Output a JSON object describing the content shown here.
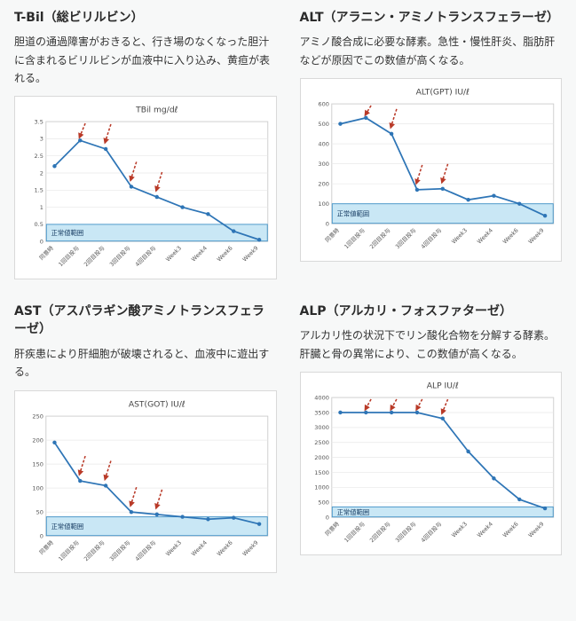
{
  "colors": {
    "line": "#2e75b6",
    "band_fill": "#c9e7f5",
    "band_border": "#4a97c9",
    "arrow": "#b93a28",
    "grid": "#e8e8e8",
    "plot_border": "#cfcfcf",
    "text": "#444444"
  },
  "panels": [
    {
      "heading": "T-Bil（総ビリルビン）",
      "description": "胆道の通過障害がおきると、行き場のなくなった胆汁に含まれるビリルビンが血液中に入り込み、黄疸が表れる。"
    },
    {
      "heading": "ALT（アラニン・アミノトランスフェラーゼ）",
      "description": "アミノ酸合成に必要な酵素。急性・慢性肝炎、脂肪肝などが原因でこの数値が高くなる。"
    },
    {
      "heading": "AST（アスパラギン酸アミノトランスフェラーゼ）",
      "description": "肝疾患により肝細胞が破壊されると、血液中に遊出する。"
    },
    {
      "heading": "ALP（アルカリ・フォスファターゼ）",
      "description": "アルカリ性の状況下でリン酸化合物を分解する酵素。肝臓と骨の異常により、この数値が高くなる。"
    }
  ],
  "chart_data": [
    {
      "type": "line",
      "title": "TBil mg/dℓ",
      "categories": [
        "同意時",
        "1回目投与",
        "2回目投与",
        "3回目投与",
        "4回目投与",
        "Week3",
        "Week4",
        "Week6",
        "Week9"
      ],
      "values": [
        2.2,
        2.95,
        2.7,
        1.6,
        1.3,
        1.0,
        0.8,
        0.3,
        0.05
      ],
      "ylim": [
        0,
        3.5
      ],
      "ystep": 0.5,
      "grid": true,
      "legend": "none",
      "normal_range": {
        "label": "正常値範囲",
        "max": 0.5
      },
      "injection_indices": [
        1,
        2,
        3,
        4
      ]
    },
    {
      "type": "line",
      "title": "ALT(GPT) IU/ℓ",
      "categories": [
        "同意時",
        "1回目投与",
        "2回目投与",
        "3回目投与",
        "4回目投与",
        "Week3",
        "Week4",
        "Week6",
        "Week9"
      ],
      "values": [
        500,
        530,
        450,
        170,
        175,
        120,
        140,
        100,
        40
      ],
      "ylim": [
        0,
        600
      ],
      "ystep": 100,
      "grid": true,
      "legend": "none",
      "normal_range": {
        "label": "正常値範囲",
        "max": 100
      },
      "injection_indices": [
        1,
        2,
        3,
        4
      ]
    },
    {
      "type": "line",
      "title": "AST(GOT) IU/ℓ",
      "categories": [
        "同意時",
        "1回目投与",
        "2回目投与",
        "3回目投与",
        "4回目投与",
        "Week3",
        "Week4",
        "Week6",
        "Week9"
      ],
      "values": [
        195,
        115,
        105,
        50,
        45,
        40,
        35,
        38,
        25
      ],
      "ylim": [
        0,
        250
      ],
      "ystep": 50,
      "grid": true,
      "legend": "none",
      "normal_range": {
        "label": "正常値範囲",
        "max": 40
      },
      "injection_indices": [
        1,
        2,
        3,
        4
      ]
    },
    {
      "type": "line",
      "title": "ALP IU/ℓ",
      "categories": [
        "同意時",
        "1回目投与",
        "2回目投与",
        "3回目投与",
        "4回目投与",
        "Week3",
        "Week4",
        "Week6",
        "Week9"
      ],
      "values": [
        3500,
        3500,
        3500,
        3500,
        3300,
        2200,
        1300,
        600,
        300
      ],
      "ylim": [
        0,
        4000
      ],
      "ystep": 500,
      "grid": true,
      "legend": "none",
      "normal_range": {
        "label": "正常値範囲",
        "max": 350
      },
      "injection_indices": [
        1,
        2,
        3,
        4
      ]
    }
  ]
}
